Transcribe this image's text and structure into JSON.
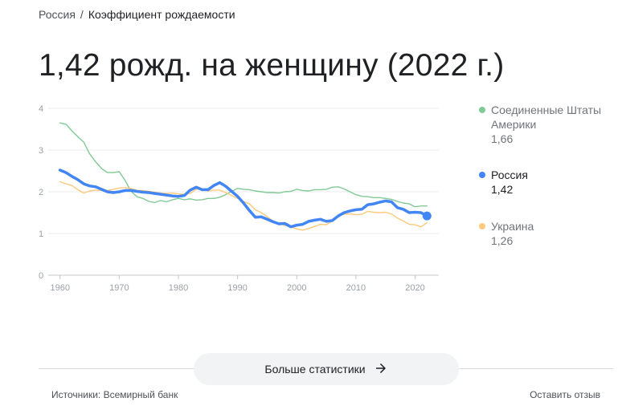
{
  "breadcrumb": {
    "root": "Россия",
    "separator": "/",
    "current": "Коэффициент рождаемости"
  },
  "headline": "1,42 рожд. на женщину (2022 г.)",
  "legend": [
    {
      "name": "Соединенные Штаты Америки",
      "value": "1,66",
      "color": "#81c995",
      "active": false
    },
    {
      "name": "Россия",
      "value": "1,42",
      "color": "#4285f4",
      "active": true
    },
    {
      "name": "Украина",
      "value": "1,26",
      "color": "#fdc97a",
      "active": false
    }
  ],
  "more_button": {
    "label": "Больше статистики",
    "icon": "arrow-right-icon"
  },
  "footer": {
    "source": "Источники: Всемирный банк",
    "feedback": "Оставить отзыв"
  },
  "chart_data": {
    "type": "line",
    "title": "",
    "xlabel": "",
    "ylabel": "",
    "xlim": [
      1958,
      2024
    ],
    "ylim": [
      0,
      4
    ],
    "x_ticks": [
      1960,
      1970,
      1980,
      1990,
      2000,
      2010,
      2020
    ],
    "y_ticks": [
      0,
      1,
      2,
      3,
      4
    ],
    "grid": true,
    "legend_position": "right",
    "x": [
      1960,
      1961,
      1962,
      1963,
      1964,
      1965,
      1966,
      1967,
      1968,
      1969,
      1970,
      1971,
      1972,
      1973,
      1974,
      1975,
      1976,
      1977,
      1978,
      1979,
      1980,
      1981,
      1982,
      1983,
      1984,
      1985,
      1986,
      1987,
      1988,
      1989,
      1990,
      1991,
      1992,
      1993,
      1994,
      1995,
      1996,
      1997,
      1998,
      1999,
      2000,
      2001,
      2002,
      2003,
      2004,
      2005,
      2006,
      2007,
      2008,
      2009,
      2010,
      2011,
      2012,
      2013,
      2014,
      2015,
      2016,
      2017,
      2018,
      2019,
      2020,
      2021,
      2022
    ],
    "series": [
      {
        "name": "Соединенные Штаты Америки",
        "color": "#81c995",
        "values": [
          3.65,
          3.62,
          3.46,
          3.32,
          3.19,
          2.91,
          2.72,
          2.56,
          2.46,
          2.46,
          2.48,
          2.27,
          2.01,
          1.88,
          1.84,
          1.77,
          1.74,
          1.79,
          1.76,
          1.81,
          1.84,
          1.81,
          1.83,
          1.8,
          1.81,
          1.84,
          1.84,
          1.87,
          1.93,
          2.01,
          2.08,
          2.06,
          2.05,
          2.02,
          2.0,
          1.98,
          1.98,
          1.97,
          2.0,
          2.01,
          2.06,
          2.03,
          2.02,
          2.05,
          2.05,
          2.06,
          2.11,
          2.12,
          2.07,
          2.0,
          1.93,
          1.89,
          1.88,
          1.86,
          1.86,
          1.84,
          1.82,
          1.77,
          1.73,
          1.71,
          1.64,
          1.66,
          1.66
        ]
      },
      {
        "name": "Россия",
        "color": "#4285f4",
        "values": [
          2.52,
          2.46,
          2.37,
          2.29,
          2.19,
          2.14,
          2.12,
          2.06,
          2.0,
          1.98,
          2.0,
          2.03,
          2.03,
          2.01,
          1.99,
          1.98,
          1.96,
          1.94,
          1.92,
          1.9,
          1.89,
          1.91,
          2.04,
          2.11,
          2.05,
          2.05,
          2.15,
          2.22,
          2.13,
          2.01,
          1.89,
          1.73,
          1.55,
          1.39,
          1.4,
          1.34,
          1.28,
          1.23,
          1.24,
          1.16,
          1.2,
          1.22,
          1.29,
          1.32,
          1.34,
          1.29,
          1.31,
          1.42,
          1.5,
          1.54,
          1.57,
          1.58,
          1.69,
          1.71,
          1.75,
          1.78,
          1.76,
          1.62,
          1.58,
          1.5,
          1.51,
          1.5,
          1.42
        ]
      },
      {
        "name": "Украина",
        "color": "#fdc97a",
        "values": [
          2.24,
          2.19,
          2.15,
          2.05,
          1.97,
          2.02,
          2.04,
          2.03,
          2.03,
          2.06,
          2.09,
          2.1,
          2.08,
          2.03,
          2.03,
          2.01,
          1.99,
          1.97,
          1.96,
          1.97,
          1.95,
          1.94,
          1.96,
          2.06,
          2.06,
          2.02,
          2.04,
          2.04,
          1.98,
          1.91,
          1.84,
          1.77,
          1.71,
          1.57,
          1.5,
          1.4,
          1.3,
          1.25,
          1.19,
          1.16,
          1.11,
          1.08,
          1.12,
          1.17,
          1.22,
          1.21,
          1.3,
          1.42,
          1.46,
          1.47,
          1.45,
          1.46,
          1.53,
          1.51,
          1.5,
          1.51,
          1.47,
          1.37,
          1.3,
          1.22,
          1.21,
          1.16,
          1.26
        ]
      }
    ]
  }
}
